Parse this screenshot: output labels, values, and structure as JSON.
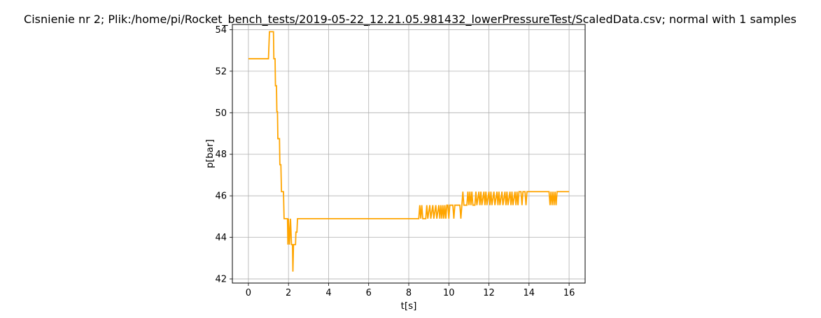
{
  "chart_data": {
    "type": "line",
    "title": "Cisnienie nr 2; Plik:/home/pi/Rocket_bench_tests/2019-05-22_12.21.05.981432_lowerPressureTest/ScaledData.csv; normal with 1 samples",
    "xlabel": "t[s]",
    "ylabel": "p[bar]",
    "xlim": [
      -0.8,
      16.8
    ],
    "ylim": [
      41.8,
      54.25
    ],
    "xticks": [
      0,
      2,
      4,
      6,
      8,
      10,
      12,
      14,
      16
    ],
    "yticks": [
      42,
      44,
      46,
      48,
      50,
      52,
      54
    ],
    "grid": true,
    "colors": {
      "series": "#ffa500",
      "grid": "#b0b0b0",
      "axes": "#000000"
    },
    "series": [
      {
        "values": [
          [
            0.0,
            52.6
          ],
          [
            1.0,
            52.6
          ],
          [
            1.05,
            53.9
          ],
          [
            1.25,
            53.9
          ],
          [
            1.27,
            52.6
          ],
          [
            1.33,
            52.6
          ],
          [
            1.35,
            51.3
          ],
          [
            1.4,
            51.3
          ],
          [
            1.42,
            50.05
          ],
          [
            1.45,
            50.05
          ],
          [
            1.47,
            48.75
          ],
          [
            1.55,
            48.75
          ],
          [
            1.57,
            47.5
          ],
          [
            1.62,
            47.5
          ],
          [
            1.65,
            46.2
          ],
          [
            1.75,
            46.2
          ],
          [
            1.78,
            44.9
          ],
          [
            1.95,
            44.9
          ],
          [
            1.97,
            43.65
          ],
          [
            2.0,
            44.9
          ],
          [
            2.05,
            43.65
          ],
          [
            2.1,
            44.9
          ],
          [
            2.15,
            43.65
          ],
          [
            2.2,
            43.65
          ],
          [
            2.22,
            42.35
          ],
          [
            2.25,
            43.65
          ],
          [
            2.35,
            43.65
          ],
          [
            2.37,
            44.25
          ],
          [
            2.42,
            44.25
          ],
          [
            2.45,
            44.9
          ],
          [
            8.5,
            44.9
          ],
          [
            8.55,
            45.55
          ],
          [
            8.6,
            44.9
          ],
          [
            8.65,
            45.55
          ],
          [
            8.7,
            44.9
          ],
          [
            8.85,
            44.9
          ],
          [
            8.9,
            45.55
          ],
          [
            8.95,
            44.9
          ],
          [
            9.05,
            45.55
          ],
          [
            9.1,
            44.9
          ],
          [
            9.2,
            45.55
          ],
          [
            9.25,
            44.9
          ],
          [
            9.35,
            45.55
          ],
          [
            9.4,
            44.9
          ],
          [
            9.5,
            45.55
          ],
          [
            9.55,
            44.9
          ],
          [
            9.6,
            45.55
          ],
          [
            9.65,
            44.9
          ],
          [
            9.7,
            45.55
          ],
          [
            9.75,
            44.9
          ],
          [
            9.8,
            45.55
          ],
          [
            9.85,
            44.9
          ],
          [
            9.9,
            45.55
          ],
          [
            9.95,
            45.55
          ],
          [
            10.0,
            44.9
          ],
          [
            10.05,
            45.55
          ],
          [
            10.2,
            45.55
          ],
          [
            10.25,
            44.9
          ],
          [
            10.3,
            45.55
          ],
          [
            10.55,
            45.55
          ],
          [
            10.6,
            44.9
          ],
          [
            10.65,
            45.55
          ],
          [
            10.7,
            46.2
          ],
          [
            10.75,
            45.55
          ],
          [
            10.9,
            45.55
          ],
          [
            10.95,
            46.2
          ],
          [
            11.0,
            45.55
          ],
          [
            11.05,
            46.2
          ],
          [
            11.1,
            45.55
          ],
          [
            11.15,
            46.2
          ],
          [
            11.2,
            45.55
          ],
          [
            11.3,
            45.55
          ],
          [
            11.35,
            46.2
          ],
          [
            11.4,
            45.55
          ],
          [
            11.5,
            46.2
          ],
          [
            11.55,
            45.55
          ],
          [
            11.6,
            46.2
          ],
          [
            11.65,
            45.55
          ],
          [
            11.75,
            46.2
          ],
          [
            11.8,
            45.55
          ],
          [
            11.85,
            46.2
          ],
          [
            11.9,
            45.55
          ],
          [
            12.0,
            46.2
          ],
          [
            12.05,
            45.55
          ],
          [
            12.1,
            46.2
          ],
          [
            12.15,
            45.55
          ],
          [
            12.25,
            46.2
          ],
          [
            12.3,
            45.55
          ],
          [
            12.4,
            46.2
          ],
          [
            12.45,
            45.55
          ],
          [
            12.5,
            46.2
          ],
          [
            12.55,
            45.55
          ],
          [
            12.65,
            46.2
          ],
          [
            12.7,
            45.55
          ],
          [
            12.8,
            46.2
          ],
          [
            12.85,
            45.55
          ],
          [
            12.9,
            46.2
          ],
          [
            12.95,
            45.55
          ],
          [
            13.05,
            46.2
          ],
          [
            13.1,
            45.55
          ],
          [
            13.15,
            46.2
          ],
          [
            13.2,
            45.55
          ],
          [
            13.3,
            46.2
          ],
          [
            13.35,
            45.55
          ],
          [
            13.4,
            46.2
          ],
          [
            13.45,
            45.55
          ],
          [
            13.5,
            46.2
          ],
          [
            13.6,
            46.2
          ],
          [
            13.65,
            45.55
          ],
          [
            13.7,
            46.2
          ],
          [
            13.8,
            46.2
          ],
          [
            13.85,
            45.55
          ],
          [
            13.9,
            46.2
          ],
          [
            15.0,
            46.2
          ],
          [
            15.05,
            45.55
          ],
          [
            15.1,
            46.2
          ],
          [
            15.15,
            45.55
          ],
          [
            15.2,
            46.2
          ],
          [
            15.25,
            45.55
          ],
          [
            15.3,
            46.2
          ],
          [
            15.35,
            45.55
          ],
          [
            15.4,
            46.2
          ],
          [
            16.0,
            46.2
          ]
        ]
      }
    ]
  }
}
